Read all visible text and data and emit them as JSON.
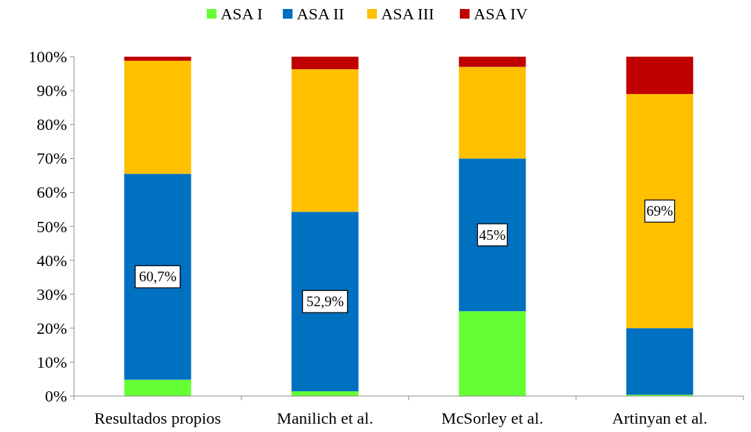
{
  "chart_data": {
    "type": "bar",
    "stacked": true,
    "categories": [
      "Resultados propios",
      "Manilich et al.",
      "McSorley et al.",
      "Artinyan et al."
    ],
    "series": [
      {
        "name": "ASA I",
        "color": "#66ff33",
        "values": [
          4.8,
          1.4,
          25,
          0.4
        ]
      },
      {
        "name": "ASA II",
        "color": "#0070c0",
        "values": [
          60.7,
          52.9,
          45,
          19.6
        ],
        "value_labels": [
          "60,7%",
          "52,9%",
          "45%",
          null
        ]
      },
      {
        "name": "ASA III",
        "color": "#ffc000",
        "values": [
          33.3,
          42.0,
          27,
          69
        ],
        "value_labels": [
          null,
          null,
          null,
          "69%"
        ]
      },
      {
        "name": "ASA IV",
        "color": "#c00000",
        "values": [
          1.2,
          3.7,
          3,
          11.0
        ]
      }
    ],
    "ylim": [
      0,
      100
    ],
    "yticks": [
      {
        "value": 0,
        "label": "0%"
      },
      {
        "value": 10,
        "label": "10%"
      },
      {
        "value": 20,
        "label": "20%"
      },
      {
        "value": 30,
        "label": "30%"
      },
      {
        "value": 40,
        "label": "40%"
      },
      {
        "value": 50,
        "label": "50%"
      },
      {
        "value": 60,
        "label": "60%"
      },
      {
        "value": 70,
        "label": "70%"
      },
      {
        "value": 80,
        "label": "80%"
      },
      {
        "value": 90,
        "label": "90%"
      },
      {
        "value": 100,
        "label": "100%"
      }
    ],
    "legend": "top",
    "grid": false
  }
}
